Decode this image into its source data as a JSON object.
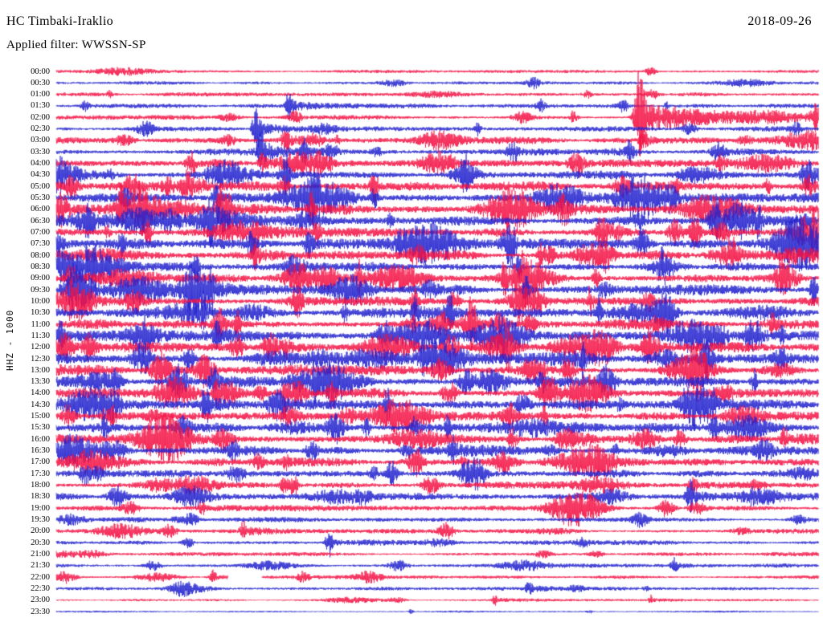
{
  "header": {
    "station_title": "HC Timbaki-Iraklio",
    "date": "2018-09-26",
    "filter_label": "Applied filter: WWSSN-SP"
  },
  "y_axis_label": "HHZ - 1000",
  "chart_data": {
    "type": "seismogram-helicorder",
    "station": "HC Timbaki-Iraklio",
    "date": "2018-09-26",
    "filter": "WWSSN-SP",
    "channel_scale_label": "HHZ - 1000",
    "row_interval_minutes": 30,
    "time_start": "00:00",
    "time_end": "23:30",
    "legend_position": "none",
    "grid": false,
    "colors": {
      "red": "#f31245",
      "blue": "#2222cf"
    },
    "rows": [
      {
        "label": "00:00",
        "color": "red",
        "activity": 1.3
      },
      {
        "label": "00:30",
        "color": "blue",
        "activity": 1.5
      },
      {
        "label": "01:00",
        "color": "red",
        "activity": 1.8
      },
      {
        "label": "01:30",
        "color": "blue",
        "activity": 2.0
      },
      {
        "label": "02:00",
        "color": "red",
        "activity": 2.2
      },
      {
        "label": "02:30",
        "color": "blue",
        "activity": 2.2
      },
      {
        "label": "03:00",
        "color": "red",
        "activity": 3.2
      },
      {
        "label": "03:30",
        "color": "blue",
        "activity": 3.4
      },
      {
        "label": "04:00",
        "color": "red",
        "activity": 3.8
      },
      {
        "label": "04:30",
        "color": "blue",
        "activity": 4.0
      },
      {
        "label": "05:00",
        "color": "red",
        "activity": 4.4
      },
      {
        "label": "05:30",
        "color": "blue",
        "activity": 4.4
      },
      {
        "label": "06:00",
        "color": "red",
        "activity": 4.8
      },
      {
        "label": "06:30",
        "color": "blue",
        "activity": 4.8
      },
      {
        "label": "07:00",
        "color": "red",
        "activity": 4.8
      },
      {
        "label": "07:30",
        "color": "blue",
        "activity": 4.8
      },
      {
        "label": "08:00",
        "color": "red",
        "activity": 4.4
      },
      {
        "label": "08:30",
        "color": "blue",
        "activity": 4.2
      },
      {
        "label": "09:00",
        "color": "red",
        "activity": 4.8
      },
      {
        "label": "09:30",
        "color": "blue",
        "activity": 4.8
      },
      {
        "label": "10:00",
        "color": "red",
        "activity": 4.4
      },
      {
        "label": "10:30",
        "color": "blue",
        "activity": 4.4
      },
      {
        "label": "11:00",
        "color": "red",
        "activity": 4.8
      },
      {
        "label": "11:30",
        "color": "blue",
        "activity": 5.0
      },
      {
        "label": "12:00",
        "color": "red",
        "activity": 4.8
      },
      {
        "label": "12:30",
        "color": "blue",
        "activity": 4.8
      },
      {
        "label": "13:00",
        "color": "red",
        "activity": 4.8
      },
      {
        "label": "13:30",
        "color": "blue",
        "activity": 4.8
      },
      {
        "label": "14:00",
        "color": "red",
        "activity": 4.8
      },
      {
        "label": "14:30",
        "color": "blue",
        "activity": 4.8
      },
      {
        "label": "15:00",
        "color": "red",
        "activity": 4.4
      },
      {
        "label": "15:30",
        "color": "blue",
        "activity": 4.4
      },
      {
        "label": "16:00",
        "color": "red",
        "activity": 4.2
      },
      {
        "label": "16:30",
        "color": "blue",
        "activity": 4.2
      },
      {
        "label": "17:00",
        "color": "red",
        "activity": 3.8
      },
      {
        "label": "17:30",
        "color": "blue",
        "activity": 3.6
      },
      {
        "label": "18:00",
        "color": "red",
        "activity": 3.2
      },
      {
        "label": "18:30",
        "color": "blue",
        "activity": 3.2
      },
      {
        "label": "19:00",
        "color": "red",
        "activity": 2.8
      },
      {
        "label": "19:30",
        "color": "blue",
        "activity": 2.4
      },
      {
        "label": "20:00",
        "color": "red",
        "activity": 2.2
      },
      {
        "label": "20:30",
        "color": "blue",
        "activity": 2.0
      },
      {
        "label": "21:00",
        "color": "red",
        "activity": 1.8
      },
      {
        "label": "21:30",
        "color": "blue",
        "activity": 1.8
      },
      {
        "label": "22:00",
        "color": "red",
        "activity": 1.6
      },
      {
        "label": "22:30",
        "color": "blue",
        "activity": 1.6
      },
      {
        "label": "23:00",
        "color": "red",
        "activity": 1.1
      },
      {
        "label": "23:30",
        "color": "blue",
        "activity": 0.9
      }
    ],
    "major_events": [
      {
        "row": 3,
        "x": 0.305,
        "amp": 18,
        "w": 0.004,
        "coda": 0.05
      },
      {
        "row": 4,
        "x": 0.765,
        "amp": 60,
        "w": 0.006,
        "coda": 0.12
      },
      {
        "row": 4,
        "x": 0.995,
        "amp": 12,
        "w": 0.005,
        "coda": 0.03
      },
      {
        "row": 5,
        "x": 0.262,
        "amp": 24,
        "w": 0.005,
        "coda": 0.06
      },
      {
        "row": 6,
        "x": 0.3,
        "amp": 12,
        "w": 0.005,
        "coda": 0.04
      },
      {
        "row": 6,
        "x": 0.77,
        "amp": 10,
        "w": 0.006,
        "coda": 0.06
      },
      {
        "row": 7,
        "x": 0.268,
        "amp": 18,
        "w": 0.005,
        "coda": 0.05
      },
      {
        "row": 7,
        "x": 0.325,
        "amp": 12,
        "w": 0.004,
        "coda": 0.04
      },
      {
        "row": 8,
        "x": 0.27,
        "amp": 11,
        "w": 0.005,
        "coda": 0.04
      },
      {
        "row": 9,
        "x": 0.985,
        "amp": 15,
        "w": 0.007,
        "coda": 0.04
      },
      {
        "row": 10,
        "x": 0.985,
        "amp": 12,
        "w": 0.006,
        "coda": 0.04
      },
      {
        "row": 11,
        "x": 0.21,
        "amp": 14,
        "w": 0.006,
        "coda": 0.05
      },
      {
        "row": 12,
        "x": 0.215,
        "amp": 16,
        "w": 0.006,
        "coda": 0.06
      },
      {
        "row": 13,
        "x": 0.2,
        "amp": 14,
        "w": 0.006,
        "coda": 0.05
      },
      {
        "row": 14,
        "x": 0.26,
        "amp": 14,
        "w": 0.005,
        "coda": 0.05
      },
      {
        "row": 15,
        "x": 0.33,
        "amp": 15,
        "w": 0.005,
        "coda": 0.05
      },
      {
        "row": 16,
        "x": 0.26,
        "amp": 12,
        "w": 0.005,
        "coda": 0.04
      },
      {
        "row": 18,
        "x": 0.018,
        "amp": 16,
        "w": 0.006,
        "coda": 0.08
      },
      {
        "row": 19,
        "x": 0.02,
        "amp": 9,
        "w": 0.005,
        "coda": 0.05
      },
      {
        "row": 20,
        "x": 0.02,
        "amp": 11,
        "w": 0.005,
        "coda": 0.05
      },
      {
        "row": 21,
        "x": 0.47,
        "amp": 12,
        "w": 0.005,
        "coda": 0.04
      },
      {
        "row": 23,
        "x": 0.21,
        "amp": 13,
        "w": 0.005,
        "coda": 0.05
      },
      {
        "row": 24,
        "x": 0.3,
        "amp": 12,
        "w": 0.005,
        "coda": 0.04
      },
      {
        "row": 25,
        "x": 0.48,
        "amp": 13,
        "w": 0.005,
        "coda": 0.05
      },
      {
        "row": 27,
        "x": 0.205,
        "amp": 17,
        "w": 0.006,
        "coda": 0.06
      },
      {
        "row": 28,
        "x": 0.21,
        "amp": 13,
        "w": 0.005,
        "coda": 0.05
      },
      {
        "row": 29,
        "x": 0.195,
        "amp": 18,
        "w": 0.006,
        "coda": 0.06
      },
      {
        "row": 31,
        "x": 0.47,
        "amp": 12,
        "w": 0.005,
        "coda": 0.05
      },
      {
        "row": 32,
        "x": 0.955,
        "amp": 13,
        "w": 0.005,
        "coda": 0.05
      },
      {
        "row": 33,
        "x": 0.52,
        "amp": 12,
        "w": 0.005,
        "coda": 0.04
      },
      {
        "row": 36,
        "x": 0.835,
        "amp": 10,
        "w": 0.005,
        "coda": 0.04
      },
      {
        "row": 37,
        "x": 0.832,
        "amp": 15,
        "w": 0.006,
        "coda": 0.06
      },
      {
        "row": 40,
        "x": 0.245,
        "amp": 10,
        "w": 0.004,
        "coda": 0.04
      },
      {
        "row": 41,
        "x": 0.358,
        "amp": 12,
        "w": 0.004,
        "coda": 0.05
      },
      {
        "row": 43,
        "x": 0.81,
        "amp": 9,
        "w": 0.004,
        "coda": 0.04
      },
      {
        "row": 44,
        "x": 0.205,
        "amp": 8,
        "w": 0.004,
        "coda": 0.04
      },
      {
        "row": 45,
        "x": 0.62,
        "amp": 8,
        "w": 0.004,
        "coda": 0.04
      },
      {
        "row": 46,
        "x": 0.575,
        "amp": 6,
        "w": 0.003,
        "coda": 0.03
      },
      {
        "row": 46,
        "x": 0.78,
        "amp": 5,
        "w": 0.003,
        "coda": 0.03
      }
    ],
    "trace_gaps": [
      {
        "row_label": "22:00",
        "row": 44,
        "x_start": 0.225,
        "x_end": 0.27
      }
    ]
  }
}
